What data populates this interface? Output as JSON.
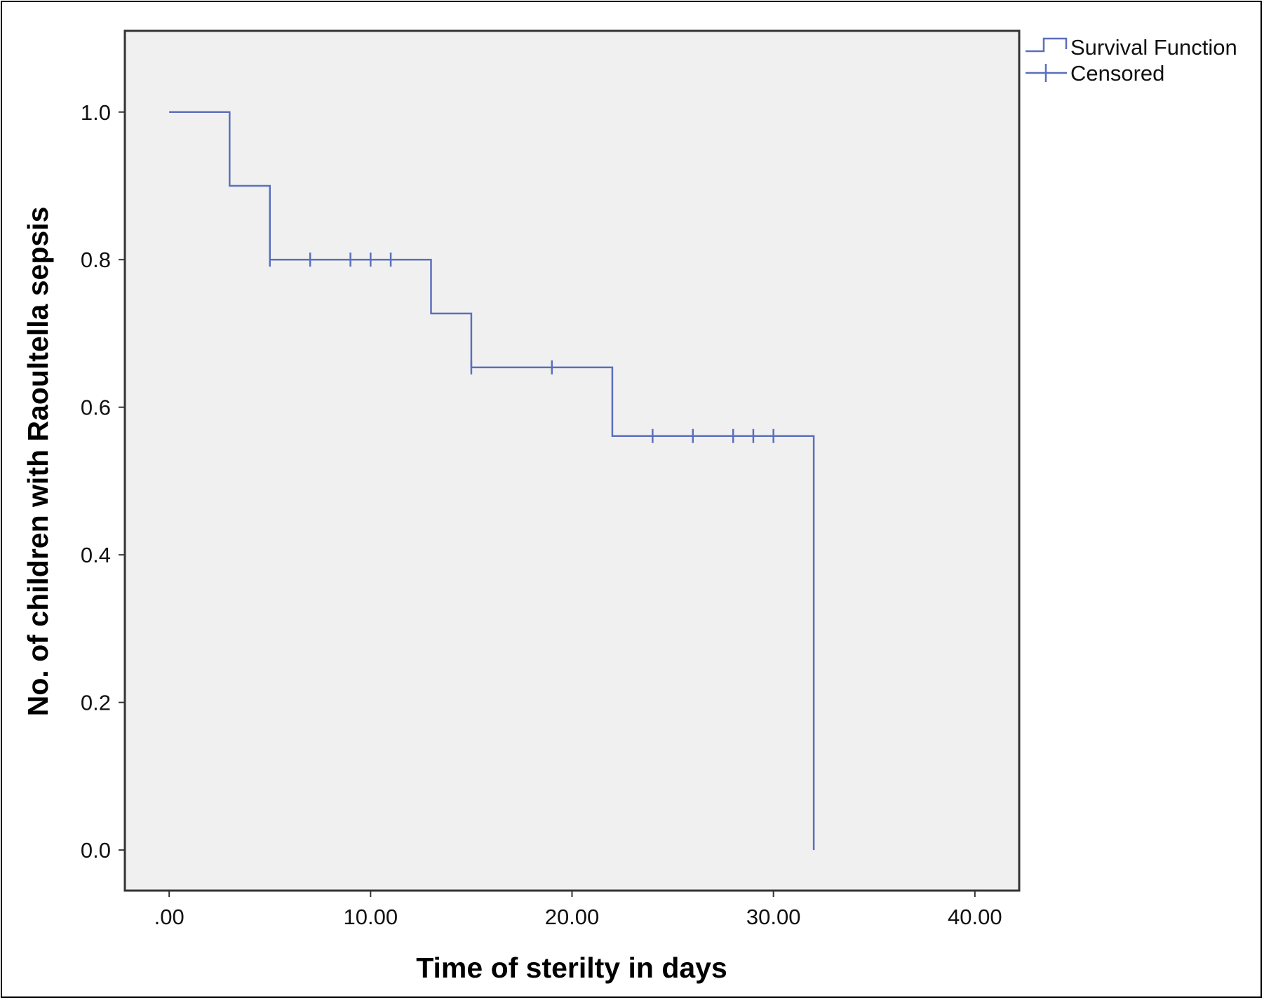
{
  "colors": {
    "line": "#5b6fbd",
    "plot_background": "#f0f0f0",
    "axis": "#333333"
  },
  "chart_data": {
    "type": "line",
    "subtype": "kaplan-meier-survival",
    "title": "",
    "xlabel": "Time of sterilty in days",
    "ylabel": "No. of children with Raoultella sepsis",
    "xlim": [
      -2.2,
      42.2
    ],
    "ylim": [
      -0.055,
      1.11
    ],
    "x_ticks": [
      0,
      10,
      20,
      30,
      40
    ],
    "x_tick_labels": [
      ".00",
      "10.00",
      "20.00",
      "30.00",
      "40.00"
    ],
    "y_ticks": [
      0,
      0.2,
      0.4,
      0.6,
      0.8,
      1.0
    ],
    "y_tick_labels": [
      "0.0",
      "0.2",
      "0.4",
      "0.6",
      "0.8",
      "1.0"
    ],
    "grid": false,
    "legend_position": "top-right, outside plot",
    "series": [
      {
        "name": "Survival Function",
        "kind": "step",
        "x": [
          0,
          3,
          5,
          13,
          15,
          22,
          32,
          32
        ],
        "y": [
          1.0,
          0.9,
          0.8,
          0.727,
          0.654,
          0.561,
          0.561,
          0.0
        ]
      },
      {
        "name": "Censored",
        "kind": "censor-ticks",
        "x": [
          5,
          7,
          9,
          10,
          11,
          15,
          19,
          24,
          26,
          28,
          29,
          30
        ],
        "y": [
          0.8,
          0.8,
          0.8,
          0.8,
          0.8,
          0.654,
          0.654,
          0.561,
          0.561,
          0.561,
          0.561,
          0.561
        ]
      }
    ]
  }
}
